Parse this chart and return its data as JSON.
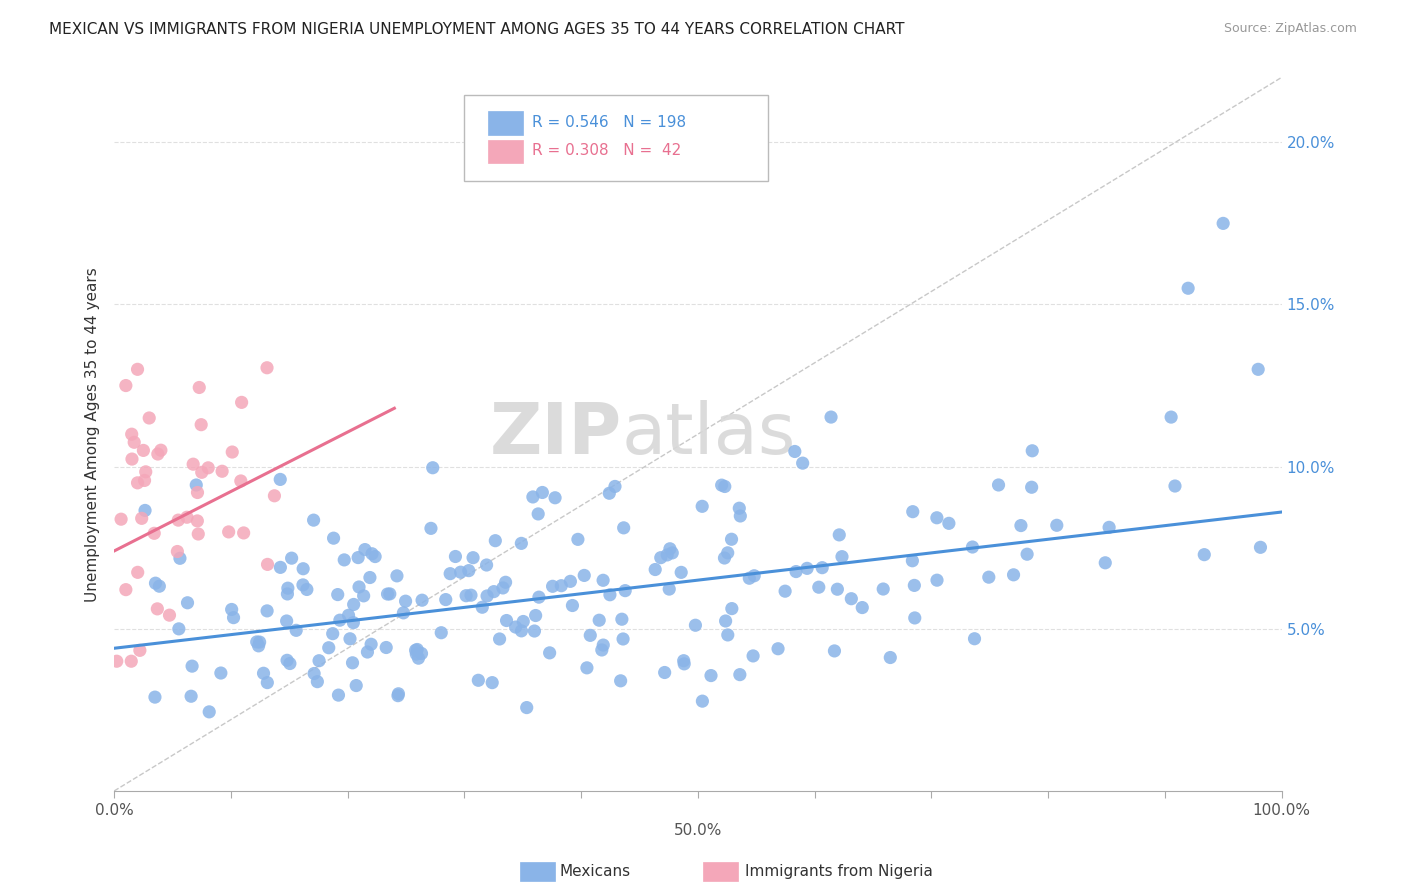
{
  "title": "MEXICAN VS IMMIGRANTS FROM NIGERIA UNEMPLOYMENT AMONG AGES 35 TO 44 YEARS CORRELATION CHART",
  "source": "Source: ZipAtlas.com",
  "ylabel": "Unemployment Among Ages 35 to 44 years",
  "xlim": [
    0,
    1.0
  ],
  "ylim": [
    0,
    0.22
  ],
  "mexican_color": "#8ab4e8",
  "nigeria_color": "#f4a7b9",
  "mexican_line_color": "#4a90d9",
  "nigeria_line_color": "#e87090",
  "diag_line_color": "#c8c8c8",
  "grid_color": "#e0e0e0",
  "watermark_zip": "ZIP",
  "watermark_atlas": "atlas",
  "legend_R_mexican": "0.546",
  "legend_N_mexican": "198",
  "legend_R_nigeria": "0.308",
  "legend_N_nigeria": " 42",
  "mexican_trend_x": [
    0.0,
    1.0
  ],
  "mexican_trend_y": [
    0.044,
    0.086
  ],
  "nigeria_trend_x": [
    0.0,
    0.24
  ],
  "nigeria_trend_y": [
    0.074,
    0.118
  ]
}
